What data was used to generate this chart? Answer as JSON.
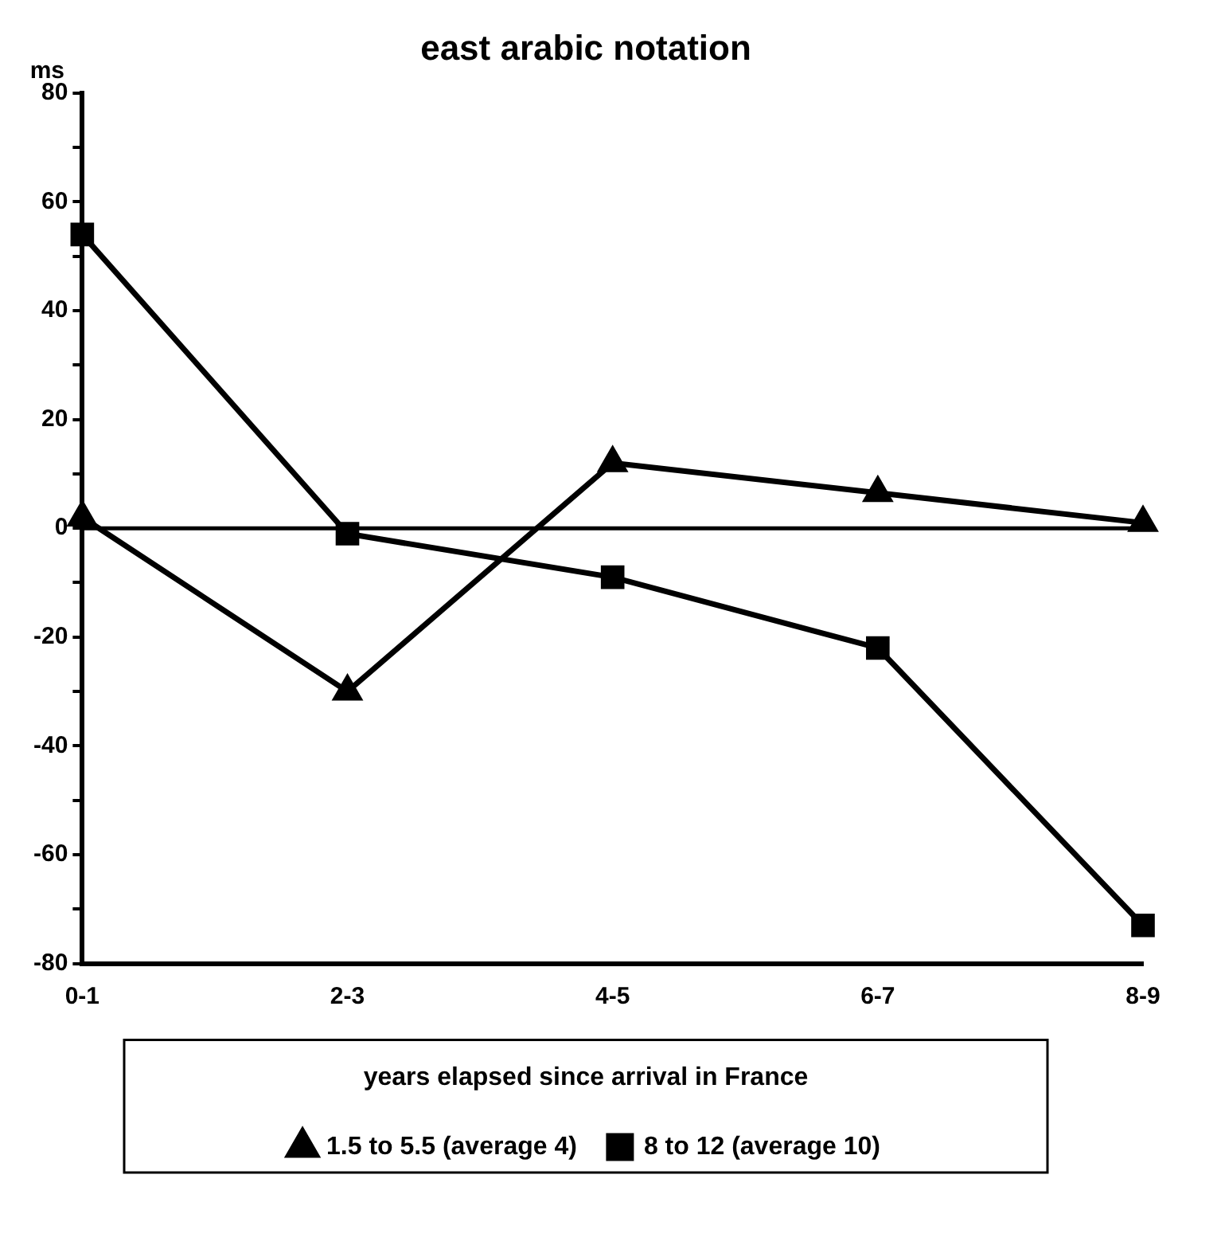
{
  "chart_data": {
    "type": "line",
    "title": "east arabic notation",
    "ylabel": "ms",
    "legend_title": "years elapsed since arrival in France",
    "categories": [
      "0-1",
      "2-3",
      "4-5",
      "6-7",
      "8-9"
    ],
    "series": [
      {
        "name": "1.5 to 5.5 (average 4)",
        "color": "#000000",
        "marker": "triangle",
        "values": [
          2,
          -30,
          12,
          6.5,
          1
        ]
      },
      {
        "name": "8 to 12 (average 10)",
        "color": "#000000",
        "marker": "square",
        "values": [
          54,
          -1,
          -9,
          -22,
          -73
        ]
      }
    ],
    "ylim": [
      -80,
      80
    ],
    "yticks": [
      -80,
      {
        "value": -70,
        "label": null
      },
      -60,
      {
        "value": -50,
        "label": null
      },
      -40,
      {
        "value": -30,
        "label": null
      },
      -20,
      {
        "value": -10,
        "label": null
      },
      0,
      {
        "value": 10,
        "label": null
      },
      20,
      {
        "value": 30,
        "label": null
      },
      40,
      {
        "value": 50,
        "label": null
      },
      60,
      {
        "value": 70,
        "label": null
      },
      80
    ],
    "ref_lines": [
      {
        "axis": "y",
        "value": 0,
        "color": "#000000"
      }
    ],
    "grid": false,
    "legend": "bottom",
    "line_style": "solid"
  }
}
